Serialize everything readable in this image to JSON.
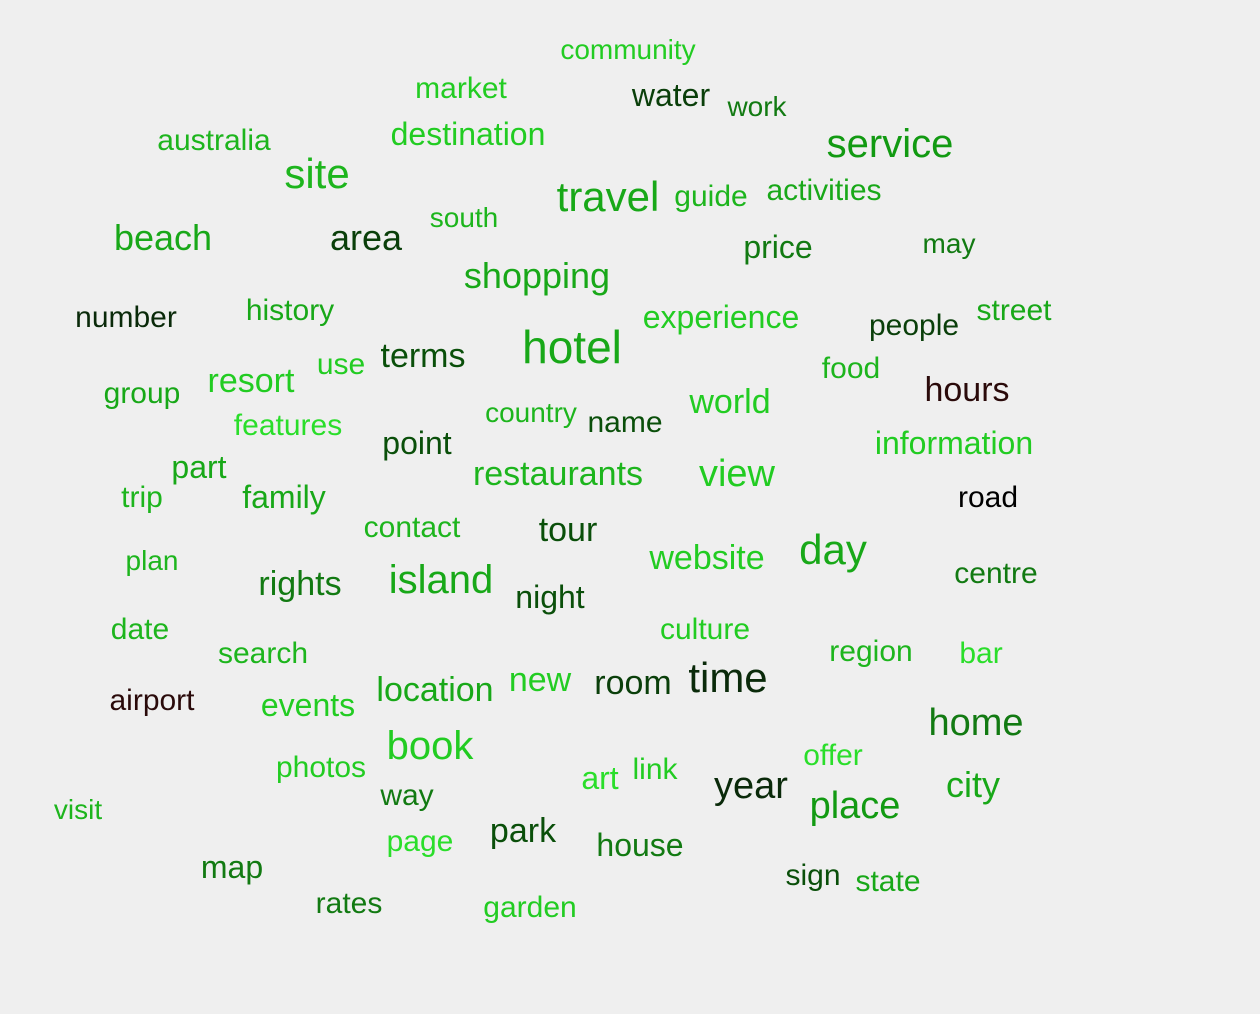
{
  "chart_data": {
    "type": "word_cloud",
    "words": [
      {
        "text": "community",
        "color": "#22cc22"
      },
      {
        "text": "market",
        "color": "#22cc22"
      },
      {
        "text": "water",
        "color": "#0a3f0a"
      },
      {
        "text": "work",
        "color": "#127a12"
      },
      {
        "text": "australia",
        "color": "#1db51d"
      },
      {
        "text": "destination",
        "color": "#22cc22"
      },
      {
        "text": "service",
        "color": "#129a12"
      },
      {
        "text": "site",
        "color": "#1db51d"
      },
      {
        "text": "travel",
        "color": "#18a818"
      },
      {
        "text": "guide",
        "color": "#1db51d"
      },
      {
        "text": "activities",
        "color": "#18a818"
      },
      {
        "text": "south",
        "color": "#1db51d"
      },
      {
        "text": "beach",
        "color": "#18a818"
      },
      {
        "text": "area",
        "color": "#0a3f0a"
      },
      {
        "text": "price",
        "color": "#127a12"
      },
      {
        "text": "may",
        "color": "#127a12"
      },
      {
        "text": "shopping",
        "color": "#18a818"
      },
      {
        "text": "number",
        "color": "#0a2a0a"
      },
      {
        "text": "history",
        "color": "#18a818"
      },
      {
        "text": "experience",
        "color": "#22cc22"
      },
      {
        "text": "street",
        "color": "#18a818"
      },
      {
        "text": "people",
        "color": "#0a3f0a"
      },
      {
        "text": "hotel",
        "color": "#18a818"
      },
      {
        "text": "use",
        "color": "#22cc22"
      },
      {
        "text": "terms",
        "color": "#0a4f0a"
      },
      {
        "text": "resort",
        "color": "#22cc22"
      },
      {
        "text": "food",
        "color": "#1db51d"
      },
      {
        "text": "group",
        "color": "#18a818"
      },
      {
        "text": "hours",
        "color": "#2a0a0a"
      },
      {
        "text": "world",
        "color": "#22cc22"
      },
      {
        "text": "country",
        "color": "#1db51d"
      },
      {
        "text": "name",
        "color": "#0a4f0a"
      },
      {
        "text": "features",
        "color": "#2ade2a"
      },
      {
        "text": "point",
        "color": "#0a4f0a"
      },
      {
        "text": "information",
        "color": "#22cc22"
      },
      {
        "text": "part",
        "color": "#18a818"
      },
      {
        "text": "restaurants",
        "color": "#1db51d"
      },
      {
        "text": "view",
        "color": "#22cc22"
      },
      {
        "text": "trip",
        "color": "#1db51d"
      },
      {
        "text": "family",
        "color": "#18a818"
      },
      {
        "text": "road",
        "color": "#000000"
      },
      {
        "text": "contact",
        "color": "#1db51d"
      },
      {
        "text": "tour",
        "color": "#0a4f0a"
      },
      {
        "text": "day",
        "color": "#18a818"
      },
      {
        "text": "website",
        "color": "#22cc22"
      },
      {
        "text": "plan",
        "color": "#1db51d"
      },
      {
        "text": "centre",
        "color": "#127a12"
      },
      {
        "text": "rights",
        "color": "#127a12"
      },
      {
        "text": "island",
        "color": "#18a818"
      },
      {
        "text": "night",
        "color": "#0a4f0a"
      },
      {
        "text": "culture",
        "color": "#22cc22"
      },
      {
        "text": "date",
        "color": "#1db51d"
      },
      {
        "text": "search",
        "color": "#1db51d"
      },
      {
        "text": "region",
        "color": "#1db51d"
      },
      {
        "text": "bar",
        "color": "#2ade2a"
      },
      {
        "text": "time",
        "color": "#0a2a0a"
      },
      {
        "text": "room",
        "color": "#0a3f0a"
      },
      {
        "text": "new",
        "color": "#22cc22"
      },
      {
        "text": "location",
        "color": "#18a818"
      },
      {
        "text": "airport",
        "color": "#2a0a0a"
      },
      {
        "text": "events",
        "color": "#22cc22"
      },
      {
        "text": "home",
        "color": "#127a12"
      },
      {
        "text": "book",
        "color": "#22cc22"
      },
      {
        "text": "offer",
        "color": "#2ade2a"
      },
      {
        "text": "photos",
        "color": "#22cc22"
      },
      {
        "text": "art",
        "color": "#2ade2a"
      },
      {
        "text": "link",
        "color": "#22cc22"
      },
      {
        "text": "year",
        "color": "#0a2a0a"
      },
      {
        "text": "city",
        "color": "#18a818"
      },
      {
        "text": "way",
        "color": "#127a12"
      },
      {
        "text": "place",
        "color": "#129a12"
      },
      {
        "text": "visit",
        "color": "#1db51d"
      },
      {
        "text": "page",
        "color": "#2ade2a"
      },
      {
        "text": "park",
        "color": "#0a4f0a"
      },
      {
        "text": "house",
        "color": "#127a12"
      },
      {
        "text": "map",
        "color": "#127a12"
      },
      {
        "text": "sign",
        "color": "#0a4f0a"
      },
      {
        "text": "state",
        "color": "#18a818"
      },
      {
        "text": "rates",
        "color": "#127a12"
      },
      {
        "text": "garden",
        "color": "#22cc22"
      }
    ]
  }
}
